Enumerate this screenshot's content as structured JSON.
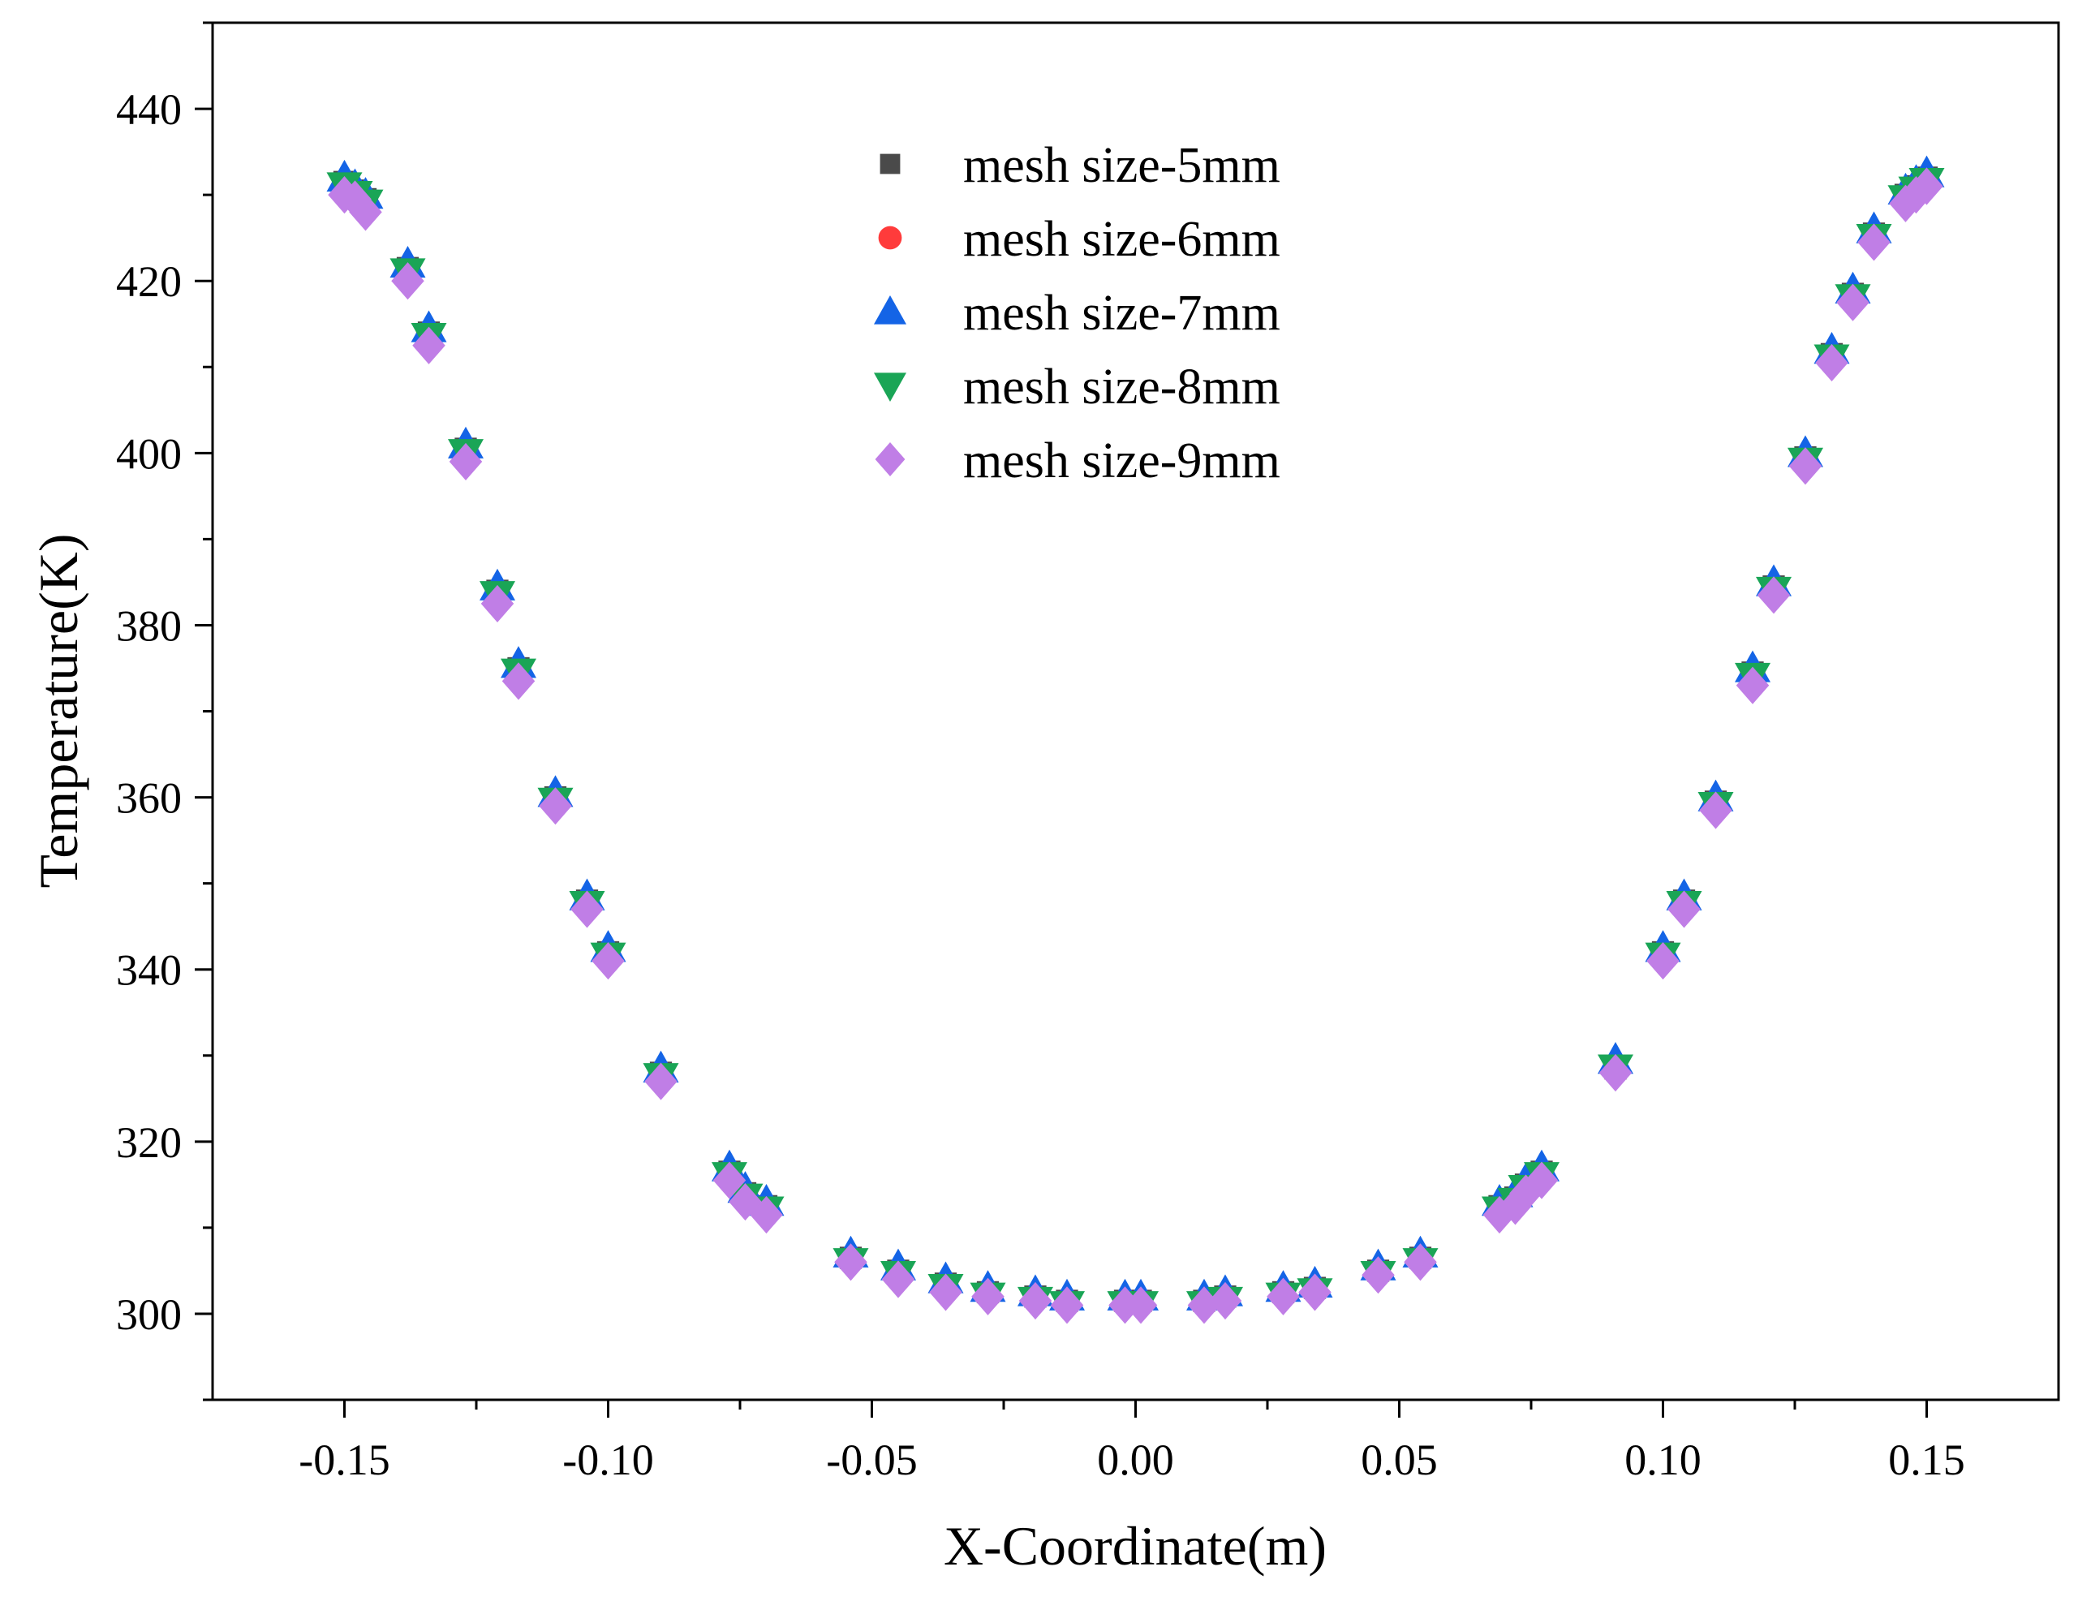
{
  "chart_data": {
    "type": "scatter",
    "title": "",
    "xlabel": "X-Coordinate(m)",
    "ylabel": "Temperature(K)",
    "xlim": [
      -0.175,
      0.175
    ],
    "ylim": [
      290,
      450
    ],
    "xticks": [
      -0.15,
      -0.1,
      -0.05,
      0.0,
      0.05,
      0.1,
      0.15
    ],
    "xtick_labels": [
      "-0.15",
      "-0.10",
      "-0.05",
      "0.00",
      "0.05",
      "0.10",
      "0.15"
    ],
    "yticks": [
      300,
      320,
      340,
      360,
      380,
      400,
      420,
      440
    ],
    "ytick_labels": [
      "300",
      "320",
      "340",
      "360",
      "380",
      "400",
      "420",
      "440"
    ],
    "grid": false,
    "legend_position": "top-center",
    "x": [
      -0.15,
      -0.148,
      -0.146,
      -0.138,
      -0.134,
      -0.127,
      -0.121,
      -0.117,
      -0.11,
      -0.104,
      -0.1,
      -0.09,
      -0.077,
      -0.074,
      -0.07,
      -0.054,
      -0.045,
      -0.036,
      -0.028,
      -0.019,
      -0.013,
      -0.002,
      0.001,
      0.013,
      0.017,
      0.028,
      0.034,
      0.046,
      0.054,
      0.069,
      0.072,
      0.074,
      0.077,
      0.091,
      0.1,
      0.104,
      0.11,
      0.117,
      0.121,
      0.127,
      0.132,
      0.136,
      0.14,
      0.146,
      0.148,
      0.15
    ],
    "series": [
      {
        "name": "mesh size-5mm",
        "marker": "square",
        "color": "#4a4a4a",
        "values": [
          431.5,
          430.5,
          429.5,
          421.5,
          414.0,
          400.5,
          384.0,
          375.0,
          360.0,
          348.0,
          342.0,
          328.0,
          316.5,
          314.0,
          312.5,
          306.5,
          305.0,
          303.5,
          302.5,
          302.0,
          301.5,
          301.5,
          301.5,
          301.5,
          302.0,
          302.5,
          303.0,
          305.0,
          306.5,
          312.5,
          313.5,
          315.0,
          316.5,
          328.5,
          342.0,
          348.0,
          359.5,
          374.5,
          384.5,
          399.5,
          411.5,
          418.5,
          425.5,
          430.0,
          431.0,
          432.0
        ]
      },
      {
        "name": "mesh size-6mm",
        "marker": "circle",
        "color": "#ff3b3b",
        "values": [
          431.2,
          430.2,
          429.2,
          421.2,
          413.8,
          400.2,
          383.8,
          374.8,
          359.8,
          347.8,
          341.8,
          327.8,
          316.3,
          313.8,
          312.3,
          306.3,
          304.8,
          303.3,
          302.3,
          301.8,
          301.3,
          301.3,
          301.3,
          301.3,
          301.8,
          302.3,
          302.8,
          304.8,
          306.3,
          312.3,
          313.3,
          314.8,
          316.3,
          328.3,
          341.8,
          347.8,
          359.3,
          374.3,
          384.3,
          399.3,
          411.3,
          418.3,
          425.3,
          429.8,
          430.8,
          431.8
        ]
      },
      {
        "name": "mesh size-7mm",
        "marker": "triangle-up",
        "color": "#1464e6",
        "values": [
          432.0,
          431.0,
          430.0,
          422.0,
          414.5,
          401.0,
          384.5,
          375.5,
          360.5,
          348.5,
          342.5,
          328.5,
          317.0,
          314.5,
          313.0,
          307.0,
          305.5,
          304.0,
          303.0,
          302.5,
          302.0,
          302.0,
          302.0,
          302.0,
          302.5,
          303.0,
          303.5,
          305.5,
          307.0,
          313.0,
          314.0,
          315.5,
          317.0,
          329.5,
          342.5,
          348.5,
          360.0,
          375.0,
          385.0,
          400.0,
          412.0,
          419.0,
          426.0,
          430.5,
          431.5,
          432.5
        ]
      },
      {
        "name": "mesh size-8mm",
        "marker": "triangle-down",
        "color": "#1aa556",
        "values": [
          431.0,
          430.0,
          429.0,
          421.0,
          413.5,
          400.0,
          383.5,
          374.5,
          359.5,
          347.5,
          341.5,
          327.5,
          316.0,
          313.5,
          312.0,
          306.0,
          304.5,
          303.0,
          302.0,
          301.5,
          301.0,
          301.0,
          301.0,
          301.0,
          301.5,
          302.0,
          302.5,
          304.5,
          306.0,
          312.0,
          313.0,
          314.5,
          316.0,
          328.5,
          341.5,
          347.5,
          359.0,
          374.0,
          384.0,
          399.0,
          411.0,
          418.0,
          425.0,
          429.5,
          430.5,
          431.5
        ]
      },
      {
        "name": "mesh size-9mm",
        "marker": "diamond",
        "color": "#c07ee6",
        "values": [
          430.0,
          429.5,
          428.0,
          420.0,
          412.5,
          399.0,
          382.5,
          373.5,
          359.0,
          347.0,
          341.0,
          327.0,
          315.5,
          313.0,
          311.5,
          306.0,
          304.0,
          302.5,
          302.0,
          301.5,
          301.0,
          301.0,
          301.0,
          301.0,
          301.5,
          302.0,
          302.5,
          304.5,
          306.0,
          311.5,
          312.5,
          314.0,
          315.5,
          328.0,
          341.0,
          347.0,
          358.5,
          373.0,
          383.5,
          398.5,
          410.5,
          417.5,
          424.5,
          429.0,
          430.0,
          431.0
        ]
      }
    ]
  }
}
